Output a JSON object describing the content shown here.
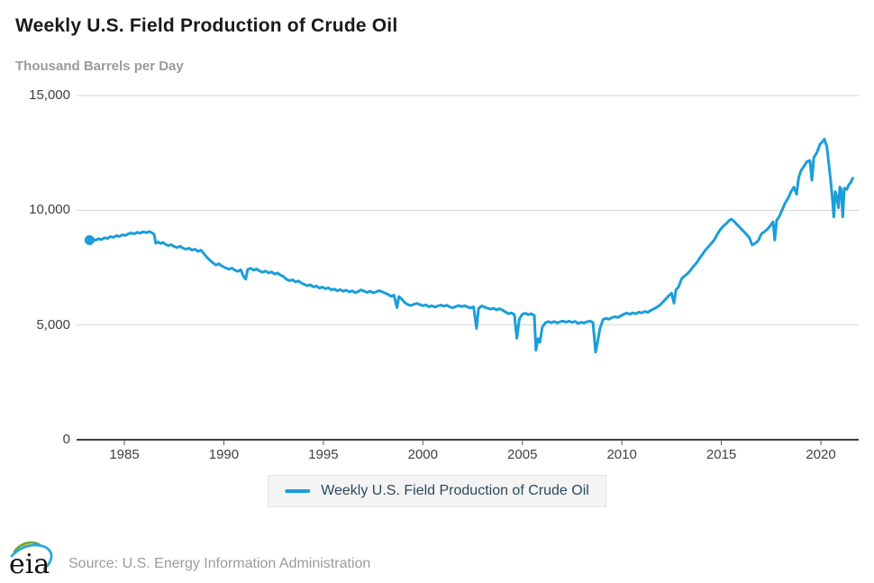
{
  "title": "Weekly U.S. Field Production of Crude Oil",
  "subtitle": "Thousand Barrels per Day",
  "legend": {
    "label": "Weekly U.S. Field Production of Crude Oil"
  },
  "source": "Source: U.S. Energy Information Administration",
  "logo_text": "eia",
  "colors": {
    "line": "#1b9ed9",
    "grid": "#d6d6d6",
    "axis": "#3f3f3f",
    "tick_text": "#404040",
    "legend_text": "#2b4a5c",
    "logo_yellow": "#f5c518",
    "logo_green": "#66a63f",
    "logo_blue": "#2aa8dc"
  },
  "chart_data": {
    "type": "line",
    "title": "Weekly U.S. Field Production of Crude Oil",
    "ylabel": "Thousand Barrels per Day",
    "xlabel": "",
    "xlim": [
      1982.6,
      2021.9
    ],
    "ylim": [
      0,
      15000
    ],
    "x_ticks": [
      1985,
      1990,
      1995,
      2000,
      2005,
      2010,
      2015,
      2020
    ],
    "y_ticks": [
      0,
      5000,
      10000,
      15000
    ],
    "y_tick_labels": [
      "0",
      "5,000",
      "10,000",
      "15,000"
    ],
    "grid": "horizontal",
    "legend_position": "bottom",
    "start_marker": true,
    "series": [
      {
        "name": "Weekly U.S. Field Production of Crude Oil",
        "points": [
          [
            1983.25,
            8700
          ],
          [
            1983.4,
            8740
          ],
          [
            1983.55,
            8690
          ],
          [
            1983.7,
            8760
          ],
          [
            1983.85,
            8720
          ],
          [
            1984.0,
            8800
          ],
          [
            1984.15,
            8770
          ],
          [
            1984.3,
            8850
          ],
          [
            1984.45,
            8820
          ],
          [
            1984.6,
            8890
          ],
          [
            1984.75,
            8860
          ],
          [
            1984.9,
            8930
          ],
          [
            1985.05,
            8900
          ],
          [
            1985.2,
            8970
          ],
          [
            1985.35,
            9010
          ],
          [
            1985.5,
            8970
          ],
          [
            1985.65,
            9040
          ],
          [
            1985.8,
            9000
          ],
          [
            1985.95,
            9060
          ],
          [
            1986.1,
            9020
          ],
          [
            1986.25,
            9070
          ],
          [
            1986.4,
            9010
          ],
          [
            1986.5,
            8950
          ],
          [
            1986.58,
            8560
          ],
          [
            1986.7,
            8620
          ],
          [
            1986.82,
            8550
          ],
          [
            1986.94,
            8600
          ],
          [
            1987.06,
            8520
          ],
          [
            1987.2,
            8460
          ],
          [
            1987.35,
            8500
          ],
          [
            1987.5,
            8420
          ],
          [
            1987.65,
            8380
          ],
          [
            1987.8,
            8430
          ],
          [
            1987.95,
            8350
          ],
          [
            1988.1,
            8300
          ],
          [
            1988.25,
            8350
          ],
          [
            1988.4,
            8260
          ],
          [
            1988.55,
            8300
          ],
          [
            1988.7,
            8210
          ],
          [
            1988.85,
            8260
          ],
          [
            1989.0,
            8100
          ],
          [
            1989.15,
            7950
          ],
          [
            1989.3,
            7820
          ],
          [
            1989.45,
            7710
          ],
          [
            1989.6,
            7610
          ],
          [
            1989.75,
            7670
          ],
          [
            1989.9,
            7570
          ],
          [
            1990.1,
            7490
          ],
          [
            1990.25,
            7430
          ],
          [
            1990.4,
            7480
          ],
          [
            1990.55,
            7390
          ],
          [
            1990.7,
            7340
          ],
          [
            1990.85,
            7400
          ],
          [
            1991.0,
            7100
          ],
          [
            1991.1,
            7000
          ],
          [
            1991.2,
            7420
          ],
          [
            1991.35,
            7470
          ],
          [
            1991.5,
            7390
          ],
          [
            1991.65,
            7440
          ],
          [
            1991.8,
            7350
          ],
          [
            1991.95,
            7300
          ],
          [
            1992.1,
            7350
          ],
          [
            1992.25,
            7270
          ],
          [
            1992.4,
            7310
          ],
          [
            1992.55,
            7220
          ],
          [
            1992.7,
            7270
          ],
          [
            1992.85,
            7170
          ],
          [
            1993.0,
            7110
          ],
          [
            1993.15,
            6990
          ],
          [
            1993.3,
            6930
          ],
          [
            1993.45,
            6970
          ],
          [
            1993.6,
            6880
          ],
          [
            1993.75,
            6920
          ],
          [
            1993.9,
            6830
          ],
          [
            1994.05,
            6770
          ],
          [
            1994.2,
            6710
          ],
          [
            1994.35,
            6750
          ],
          [
            1994.5,
            6660
          ],
          [
            1994.65,
            6700
          ],
          [
            1994.8,
            6610
          ],
          [
            1994.95,
            6650
          ],
          [
            1995.1,
            6580
          ],
          [
            1995.25,
            6620
          ],
          [
            1995.4,
            6530
          ],
          [
            1995.55,
            6570
          ],
          [
            1995.7,
            6490
          ],
          [
            1995.85,
            6540
          ],
          [
            1996.0,
            6470
          ],
          [
            1996.15,
            6520
          ],
          [
            1996.3,
            6440
          ],
          [
            1996.45,
            6490
          ],
          [
            1996.6,
            6410
          ],
          [
            1996.75,
            6460
          ],
          [
            1996.9,
            6530
          ],
          [
            1997.05,
            6470
          ],
          [
            1997.2,
            6420
          ],
          [
            1997.35,
            6470
          ],
          [
            1997.5,
            6400
          ],
          [
            1997.65,
            6440
          ],
          [
            1997.8,
            6500
          ],
          [
            1997.95,
            6450
          ],
          [
            1998.1,
            6390
          ],
          [
            1998.25,
            6330
          ],
          [
            1998.4,
            6250
          ],
          [
            1998.55,
            6300
          ],
          [
            1998.7,
            5760
          ],
          [
            1998.8,
            6240
          ],
          [
            1998.95,
            6120
          ],
          [
            1999.1,
            5970
          ],
          [
            1999.25,
            5890
          ],
          [
            1999.4,
            5850
          ],
          [
            1999.55,
            5900
          ],
          [
            1999.7,
            5940
          ],
          [
            1999.85,
            5890
          ],
          [
            2000.0,
            5840
          ],
          [
            2000.15,
            5880
          ],
          [
            2000.3,
            5790
          ],
          [
            2000.45,
            5840
          ],
          [
            2000.6,
            5780
          ],
          [
            2000.75,
            5830
          ],
          [
            2000.9,
            5870
          ],
          [
            2001.05,
            5820
          ],
          [
            2001.2,
            5860
          ],
          [
            2001.35,
            5790
          ],
          [
            2001.5,
            5750
          ],
          [
            2001.65,
            5800
          ],
          [
            2001.8,
            5850
          ],
          [
            2001.95,
            5800
          ],
          [
            2002.1,
            5840
          ],
          [
            2002.25,
            5780
          ],
          [
            2002.4,
            5740
          ],
          [
            2002.55,
            5790
          ],
          [
            2002.7,
            4850
          ],
          [
            2002.8,
            5720
          ],
          [
            2002.95,
            5830
          ],
          [
            2003.1,
            5780
          ],
          [
            2003.25,
            5730
          ],
          [
            2003.4,
            5690
          ],
          [
            2003.55,
            5730
          ],
          [
            2003.7,
            5660
          ],
          [
            2003.85,
            5710
          ],
          [
            2004.0,
            5650
          ],
          [
            2004.15,
            5570
          ],
          [
            2004.3,
            5490
          ],
          [
            2004.45,
            5530
          ],
          [
            2004.6,
            5450
          ],
          [
            2004.72,
            4420
          ],
          [
            2004.85,
            5260
          ],
          [
            2005.0,
            5470
          ],
          [
            2005.15,
            5510
          ],
          [
            2005.3,
            5450
          ],
          [
            2005.45,
            5490
          ],
          [
            2005.6,
            5410
          ],
          [
            2005.68,
            3900
          ],
          [
            2005.78,
            4400
          ],
          [
            2005.88,
            4250
          ],
          [
            2006.0,
            4900
          ],
          [
            2006.15,
            5090
          ],
          [
            2006.3,
            5150
          ],
          [
            2006.45,
            5100
          ],
          [
            2006.6,
            5150
          ],
          [
            2006.75,
            5090
          ],
          [
            2006.9,
            5140
          ],
          [
            2007.05,
            5170
          ],
          [
            2007.2,
            5120
          ],
          [
            2007.35,
            5170
          ],
          [
            2007.5,
            5110
          ],
          [
            2007.65,
            5160
          ],
          [
            2007.8,
            5070
          ],
          [
            2007.95,
            5120
          ],
          [
            2008.1,
            5090
          ],
          [
            2008.25,
            5140
          ],
          [
            2008.4,
            5170
          ],
          [
            2008.55,
            5110
          ],
          [
            2008.68,
            3820
          ],
          [
            2008.78,
            4250
          ],
          [
            2008.9,
            4850
          ],
          [
            2009.05,
            5240
          ],
          [
            2009.2,
            5290
          ],
          [
            2009.35,
            5250
          ],
          [
            2009.5,
            5320
          ],
          [
            2009.65,
            5360
          ],
          [
            2009.8,
            5330
          ],
          [
            2009.95,
            5400
          ],
          [
            2010.1,
            5470
          ],
          [
            2010.25,
            5520
          ],
          [
            2010.4,
            5470
          ],
          [
            2010.55,
            5530
          ],
          [
            2010.7,
            5490
          ],
          [
            2010.85,
            5560
          ],
          [
            2011.0,
            5530
          ],
          [
            2011.15,
            5590
          ],
          [
            2011.3,
            5550
          ],
          [
            2011.45,
            5630
          ],
          [
            2011.6,
            5700
          ],
          [
            2011.75,
            5770
          ],
          [
            2011.9,
            5860
          ],
          [
            2012.05,
            5990
          ],
          [
            2012.2,
            6130
          ],
          [
            2012.35,
            6270
          ],
          [
            2012.5,
            6390
          ],
          [
            2012.62,
            5950
          ],
          [
            2012.72,
            6530
          ],
          [
            2012.85,
            6660
          ],
          [
            2013.0,
            7010
          ],
          [
            2013.15,
            7130
          ],
          [
            2013.3,
            7240
          ],
          [
            2013.45,
            7390
          ],
          [
            2013.6,
            7560
          ],
          [
            2013.75,
            7700
          ],
          [
            2013.9,
            7900
          ],
          [
            2014.05,
            8080
          ],
          [
            2014.2,
            8260
          ],
          [
            2014.35,
            8410
          ],
          [
            2014.5,
            8560
          ],
          [
            2014.65,
            8720
          ],
          [
            2014.8,
            8960
          ],
          [
            2014.95,
            9160
          ],
          [
            2015.1,
            9310
          ],
          [
            2015.25,
            9420
          ],
          [
            2015.4,
            9560
          ],
          [
            2015.5,
            9610
          ],
          [
            2015.65,
            9510
          ],
          [
            2015.8,
            9360
          ],
          [
            2015.95,
            9230
          ],
          [
            2016.1,
            9100
          ],
          [
            2016.25,
            8960
          ],
          [
            2016.4,
            8810
          ],
          [
            2016.55,
            8480
          ],
          [
            2016.7,
            8560
          ],
          [
            2016.85,
            8670
          ],
          [
            2017.0,
            8960
          ],
          [
            2017.15,
            9060
          ],
          [
            2017.3,
            9160
          ],
          [
            2017.45,
            9310
          ],
          [
            2017.6,
            9500
          ],
          [
            2017.68,
            8700
          ],
          [
            2017.78,
            9560
          ],
          [
            2017.9,
            9720
          ],
          [
            2018.05,
            10010
          ],
          [
            2018.2,
            10310
          ],
          [
            2018.35,
            10520
          ],
          [
            2018.5,
            10810
          ],
          [
            2018.65,
            11010
          ],
          [
            2018.78,
            10700
          ],
          [
            2018.88,
            11400
          ],
          [
            2019.0,
            11720
          ],
          [
            2019.15,
            11920
          ],
          [
            2019.3,
            12120
          ],
          [
            2019.45,
            12170
          ],
          [
            2019.55,
            11310
          ],
          [
            2019.65,
            12310
          ],
          [
            2019.8,
            12510
          ],
          [
            2019.95,
            12860
          ],
          [
            2020.1,
            13010
          ],
          [
            2020.18,
            13100
          ],
          [
            2020.3,
            12760
          ],
          [
            2020.4,
            12010
          ],
          [
            2020.5,
            11210
          ],
          [
            2020.58,
            10510
          ],
          [
            2020.65,
            9710
          ],
          [
            2020.72,
            10810
          ],
          [
            2020.8,
            10610
          ],
          [
            2020.88,
            10110
          ],
          [
            2020.95,
            11010
          ],
          [
            2021.02,
            10910
          ],
          [
            2021.1,
            9710
          ],
          [
            2021.18,
            10960
          ],
          [
            2021.3,
            10910
          ],
          [
            2021.4,
            11110
          ],
          [
            2021.5,
            11210
          ],
          [
            2021.6,
            11400
          ]
        ]
      }
    ]
  }
}
